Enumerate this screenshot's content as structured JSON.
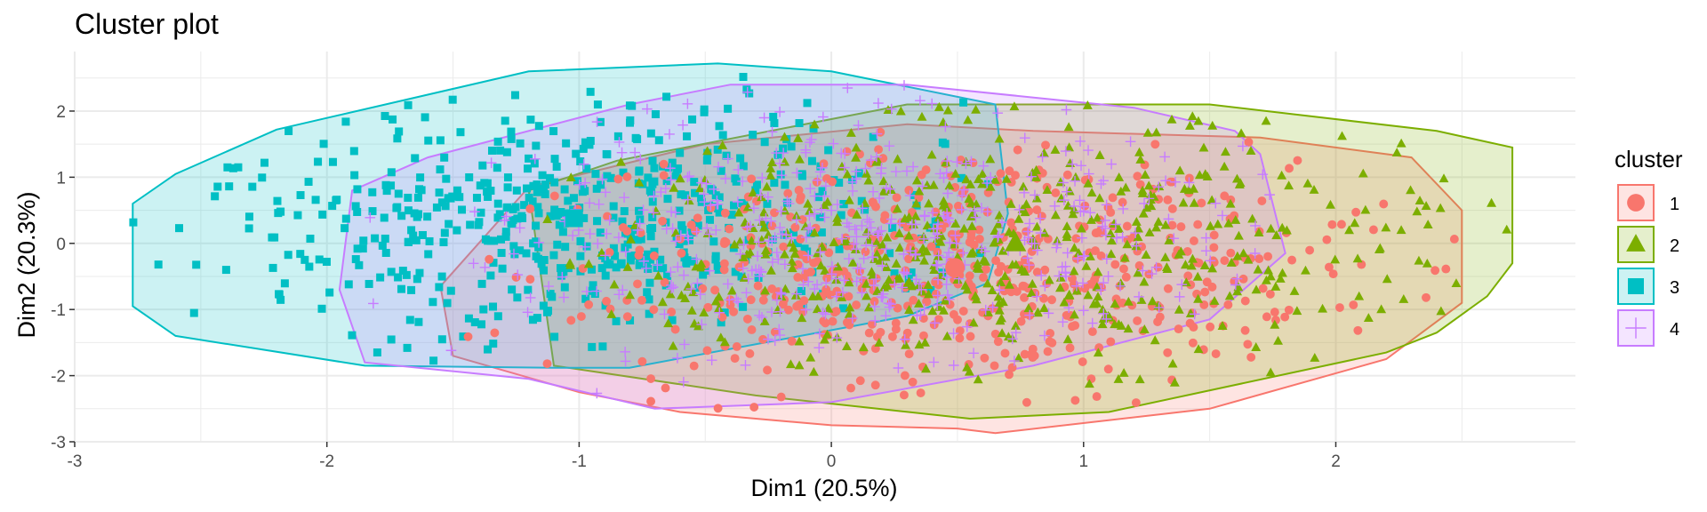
{
  "chart_data": {
    "type": "scatter",
    "title": "Cluster plot",
    "xlabel": "Dim1 (20.5%)",
    "ylabel": "Dim2 (20.3%)",
    "xlim": [
      -3,
      2.95
    ],
    "ylim": [
      -3.0,
      2.9
    ],
    "xticks": [
      -3,
      -2,
      -1,
      0,
      1,
      2
    ],
    "yticks": [
      -3,
      -2,
      -1,
      0,
      1,
      2
    ],
    "grid": true,
    "legend": {
      "title": "cluster",
      "position": "right"
    },
    "series": [
      {
        "name": "1",
        "color": "#F8766D",
        "marker": "circle",
        "centroid": [
          0.49,
          -0.37
        ],
        "hull": [
          [
            0.65,
            -2.87
          ],
          [
            1.5,
            -2.5
          ],
          [
            2.2,
            -1.75
          ],
          [
            2.5,
            -0.9
          ],
          [
            2.5,
            0.5
          ],
          [
            2.3,
            1.3
          ],
          [
            1.7,
            1.6
          ],
          [
            0.8,
            1.7
          ],
          [
            0.3,
            1.8
          ],
          [
            -0.5,
            1.5
          ],
          [
            -1.2,
            0.85
          ],
          [
            -1.55,
            -0.65
          ],
          [
            -1.5,
            -1.7
          ],
          [
            -1.0,
            -2.25
          ],
          [
            -0.6,
            -2.55
          ],
          [
            0.0,
            -2.75
          ],
          [
            0.5,
            -2.8
          ]
        ]
      },
      {
        "name": "2",
        "color": "#7CAE00",
        "marker": "triangle",
        "centroid": [
          0.73,
          0.0
        ],
        "hull": [
          [
            2.7,
            1.45
          ],
          [
            2.7,
            -0.3
          ],
          [
            2.6,
            -0.8
          ],
          [
            2.4,
            -1.35
          ],
          [
            2.2,
            -1.65
          ],
          [
            1.1,
            -2.55
          ],
          [
            0.55,
            -2.65
          ],
          [
            -0.3,
            -2.3
          ],
          [
            -1.1,
            -1.85
          ],
          [
            -1.2,
            0.8
          ],
          [
            -0.85,
            1.25
          ],
          [
            0.3,
            2.1
          ],
          [
            1.5,
            2.1
          ],
          [
            2.4,
            1.7
          ]
        ]
      },
      {
        "name": "3",
        "color": "#00BFC4",
        "marker": "square",
        "centroid": [
          -1.02,
          0.38
        ],
        "hull": [
          [
            -2.77,
            0.6
          ],
          [
            -2.77,
            -0.95
          ],
          [
            -2.6,
            -1.4
          ],
          [
            -2.3,
            -1.58
          ],
          [
            -1.85,
            -1.85
          ],
          [
            -1.1,
            -1.88
          ],
          [
            -0.8,
            -1.88
          ],
          [
            0.3,
            -1.1
          ],
          [
            0.62,
            -0.6
          ],
          [
            0.7,
            0.45
          ],
          [
            0.65,
            2.1
          ],
          [
            0.0,
            2.6
          ],
          [
            -0.45,
            2.72
          ],
          [
            -1.2,
            2.6
          ],
          [
            -2.2,
            1.72
          ],
          [
            -2.6,
            1.05
          ]
        ]
      },
      {
        "name": "4",
        "color": "#C77CFF",
        "marker": "plus",
        "centroid": [
          0.1,
          0.1
        ],
        "hull": [
          [
            -1.9,
            0.8
          ],
          [
            -1.95,
            -0.7
          ],
          [
            -1.85,
            -1.8
          ],
          [
            -1.2,
            -2.05
          ],
          [
            -0.7,
            -2.5
          ],
          [
            0.0,
            -2.4
          ],
          [
            0.8,
            -1.85
          ],
          [
            1.5,
            -1.15
          ],
          [
            1.8,
            -0.15
          ],
          [
            1.7,
            1.35
          ],
          [
            1.6,
            1.7
          ],
          [
            1.2,
            2.05
          ],
          [
            0.3,
            2.4
          ],
          [
            -0.4,
            2.4
          ],
          [
            -0.8,
            2.1
          ],
          [
            -1.6,
            1.3
          ]
        ]
      }
    ]
  }
}
